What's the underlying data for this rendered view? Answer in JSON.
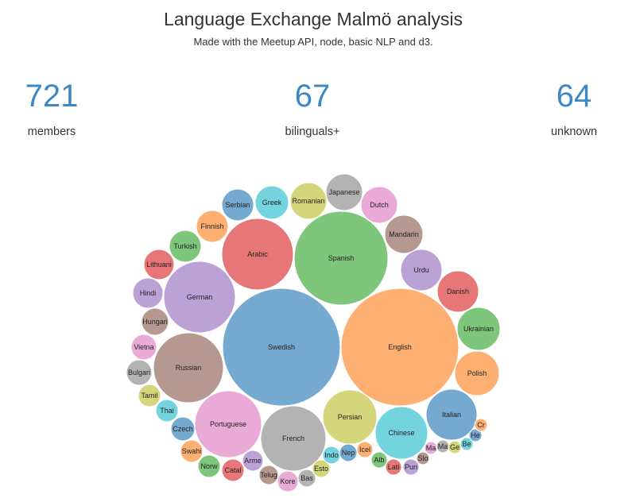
{
  "header": {
    "title": "Language Exchange Malmö analysis",
    "subtitle": "Made with the Meetup API, node, basic NLP and d3."
  },
  "stats": {
    "members": {
      "value": "721",
      "label": "members"
    },
    "bilinguals": {
      "value": "67",
      "label": "bilinguals+"
    },
    "unknown": {
      "value": "64",
      "label": "unknown"
    }
  },
  "chart_data": {
    "type": "bubble",
    "bubbles": [
      {
        "label": "Swedish",
        "color": "#76a9cf"
      },
      {
        "label": "English",
        "color": "#fdb071"
      },
      {
        "label": "Spanish",
        "color": "#7dc67b"
      },
      {
        "label": "Arabic",
        "color": "#e67677"
      },
      {
        "label": "German",
        "color": "#bba1d6"
      },
      {
        "label": "Russian",
        "color": "#b59991"
      },
      {
        "label": "Portuguese",
        "color": "#eaaad8"
      },
      {
        "label": "French",
        "color": "#b3b3b3"
      },
      {
        "label": "Persian",
        "color": "#d5d67b"
      },
      {
        "label": "Chinese",
        "color": "#73d4e0"
      },
      {
        "label": "Italian",
        "color": "#76a9cf"
      },
      {
        "label": "Polish",
        "color": "#fdb071"
      },
      {
        "label": "Ukrainian",
        "color": "#7dc67b"
      },
      {
        "label": "Danish",
        "color": "#e67677"
      },
      {
        "label": "Urdu",
        "color": "#bba1d6"
      },
      {
        "label": "Mandarin",
        "color": "#b59991"
      },
      {
        "label": "Dutch",
        "color": "#eaaad8"
      },
      {
        "label": "Japanese",
        "color": "#b3b3b3"
      },
      {
        "label": "Romanian",
        "color": "#d5d67b"
      },
      {
        "label": "Greek",
        "color": "#73d4e0"
      },
      {
        "label": "Serbian",
        "color": "#76a9cf"
      },
      {
        "label": "Finnish",
        "color": "#fdb071"
      },
      {
        "label": "Turkish",
        "color": "#7dc67b"
      },
      {
        "label": "Lithuanian",
        "color": "#e67677"
      },
      {
        "label": "Hindi",
        "color": "#bba1d6"
      },
      {
        "label": "Hungarian",
        "color": "#b59991"
      },
      {
        "label": "Vietnamese",
        "color": "#eaaad8"
      },
      {
        "label": "Bulgarian",
        "color": "#b3b3b3"
      },
      {
        "label": "Tamil",
        "color": "#d5d67b"
      },
      {
        "label": "Thai",
        "color": "#73d4e0"
      },
      {
        "label": "Czech",
        "color": "#76a9cf"
      },
      {
        "label": "Swahili",
        "color": "#fdb071"
      },
      {
        "label": "Norwegian",
        "color": "#7dc67b"
      },
      {
        "label": "Catalan",
        "color": "#e67677"
      },
      {
        "label": "Armenian",
        "color": "#bba1d6"
      },
      {
        "label": "Telugu",
        "color": "#b59991"
      },
      {
        "label": "Korean",
        "color": "#eaaad8"
      },
      {
        "label": "Basque",
        "color": "#b3b3b3"
      },
      {
        "label": "Estonian",
        "color": "#d5d67b"
      },
      {
        "label": "Indonesian",
        "color": "#73d4e0"
      },
      {
        "label": "Nepali",
        "color": "#76a9cf"
      },
      {
        "label": "Icelandic",
        "color": "#fdb071"
      },
      {
        "label": "Albanian",
        "color": "#7dc67b"
      },
      {
        "label": "Latin",
        "color": "#e67677"
      },
      {
        "label": "Punjabi",
        "color": "#bba1d6"
      },
      {
        "label": "Slovak",
        "color": "#b59991"
      },
      {
        "label": "Malay",
        "color": "#eaaad8"
      },
      {
        "label": "Macedonian",
        "color": "#b3b3b3"
      },
      {
        "label": "Georgian",
        "color": "#d5d67b"
      },
      {
        "label": "Bengali",
        "color": "#73d4e0"
      },
      {
        "label": "Hebrew",
        "color": "#76a9cf"
      },
      {
        "label": "Croatian",
        "color": "#fdb071"
      }
    ]
  }
}
